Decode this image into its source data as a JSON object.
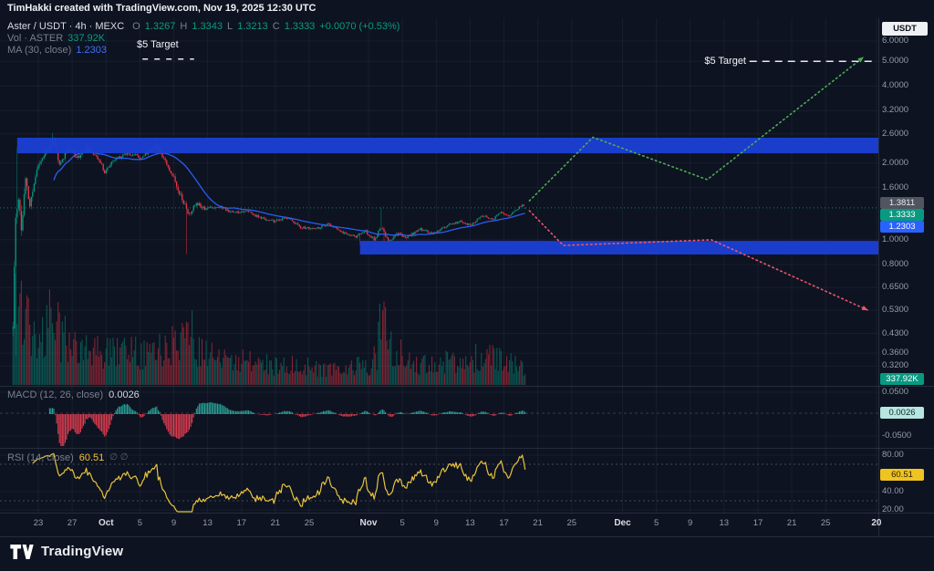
{
  "meta": {
    "attribution": "TimHakki created with TradingView.com, Nov 19, 2025 12:30 UTC",
    "currency_button": "USDT",
    "footer_brand": "TradingView"
  },
  "legend": {
    "title": "Aster / USDT · 4h · MEXC",
    "o_label": "O",
    "o": "1.3267",
    "h_label": "H",
    "h": "1.3343",
    "l_label": "L",
    "l": "1.3213",
    "c_label": "C",
    "c": "1.3333",
    "change": "+0.0070 (+0.53%)",
    "vol_label": "Vol · ASTER",
    "vol_value": "337.92K",
    "ma_label": "MA (30, close)",
    "ma_value": "1.2303"
  },
  "panes": {
    "macd_label": "MACD (12, 26, close)",
    "macd_value": "0.0026",
    "rsi_label": "RSI (14, close)",
    "rsi_value": "60.51",
    "rsi_extra": "∅ ∅"
  },
  "annotations": {
    "target_left": "$5 Target",
    "target_right": "$5 Target"
  },
  "axis_badges": {
    "bar_high": "1.3811",
    "last_price": "1.3333",
    "ma_value": "1.2303",
    "volume": "337.92K",
    "macd": "0.0026",
    "rsi": "60.51"
  },
  "chart_data": {
    "type": "candlestick",
    "symbol": "Aster / USDT",
    "exchange": "MEXC",
    "timeframe": "4h",
    "bars": 364,
    "seed": 11,
    "current_price": 1.3333,
    "last_bar": {
      "open": 1.3267,
      "high": 1.3343,
      "low": 1.3213,
      "close": 1.3333,
      "change": "+0.0070 (+0.53%)",
      "volume": "337.92K"
    },
    "colors": {
      "up": "#089981",
      "down": "#f23645",
      "ma": "#2962ff",
      "rsi": "#e9c33c",
      "band": "#1b3fd6",
      "bull": "#4caf50",
      "bear": "#ef566a",
      "target": "#e8eaee"
    },
    "y_ticks": [
      {
        "label": "6.0000",
        "price": 6.0
      },
      {
        "label": "5.0000",
        "price": 5.0
      },
      {
        "label": "4.0000",
        "price": 4.0
      },
      {
        "label": "3.2000",
        "price": 3.2
      },
      {
        "label": "2.6000",
        "price": 2.6
      },
      {
        "label": "2.0000",
        "price": 2.0
      },
      {
        "label": "1.6000",
        "price": 1.6
      },
      {
        "label": "1.0000",
        "price": 1.0
      },
      {
        "label": "0.8000",
        "price": 0.8
      },
      {
        "label": "0.6500",
        "price": 0.65
      },
      {
        "label": "0.5300",
        "price": 0.53
      },
      {
        "label": "0.4300",
        "price": 0.43
      },
      {
        "label": "0.3600",
        "price": 0.36
      },
      {
        "label": "0.3200",
        "price": 0.32
      }
    ],
    "macd_ticks": [
      {
        "label": "0.0500",
        "value": 0.05
      },
      {
        "label": "-0.0500",
        "value": -0.05
      }
    ],
    "rsi_ticks": [
      {
        "label": "80.00",
        "value": 80
      },
      {
        "label": "40.00",
        "value": 40
      },
      {
        "label": "20.00",
        "value": 20
      }
    ],
    "rsi_bands": [
      70,
      30
    ],
    "x_ticks": [
      {
        "label": "23",
        "day": 0
      },
      {
        "label": "27",
        "day": 4
      },
      {
        "label": "Oct",
        "day": 8,
        "major": true
      },
      {
        "label": "5",
        "day": 12
      },
      {
        "label": "9",
        "day": 16
      },
      {
        "label": "13",
        "day": 20
      },
      {
        "label": "17",
        "day": 24
      },
      {
        "label": "21",
        "day": 28
      },
      {
        "label": "25",
        "day": 32
      },
      {
        "label": "Nov",
        "day": 39,
        "major": true
      },
      {
        "label": "5",
        "day": 43
      },
      {
        "label": "9",
        "day": 47
      },
      {
        "label": "13",
        "day": 51
      },
      {
        "label": "17",
        "day": 55
      },
      {
        "label": "21",
        "day": 59
      },
      {
        "label": "25",
        "day": 63
      },
      {
        "label": "Dec",
        "day": 69,
        "major": true
      },
      {
        "label": "5",
        "day": 73
      },
      {
        "label": "9",
        "day": 77
      },
      {
        "label": "13",
        "day": 81
      },
      {
        "label": "17",
        "day": 85
      },
      {
        "label": "21",
        "day": 89
      },
      {
        "label": "25",
        "day": 93
      },
      {
        "label": "20",
        "day": 99,
        "major": true
      }
    ],
    "zones": [
      {
        "name": "supply-zone",
        "price_from": 2.18,
        "price_to": 2.51,
        "start_day": -2.5,
        "end_day": 99.3
      },
      {
        "name": "demand-zone",
        "price_from": 0.876,
        "price_to": 0.99,
        "start_day": 38,
        "end_day": 99.3
      }
    ],
    "projections": [
      {
        "name": "bullish-path",
        "color": "#4caf50",
        "points": [
          [
            58,
            1.42
          ],
          [
            65.5,
            2.52
          ],
          [
            79,
            1.72
          ],
          [
            97.5,
            5.2
          ]
        ],
        "arrow": true
      },
      {
        "name": "bearish-path",
        "color": "#ef566a",
        "points": [
          [
            58,
            1.3
          ],
          [
            62,
            0.95
          ],
          [
            79.5,
            1.0
          ],
          [
            98,
            0.53
          ]
        ],
        "arrow": true
      }
    ],
    "target_line": {
      "label": "$5 Target",
      "price": 5.0,
      "start_day": 84,
      "end_day": 98.8
    },
    "annotation_dash": {
      "label": "$5 Target",
      "price": 5.1,
      "start_day": 12.3,
      "end_day": 18.4
    },
    "price_keypoints": [
      [
        0,
        0.45
      ],
      [
        2,
        1.2
      ],
      [
        4,
        1.5
      ],
      [
        6,
        1.1
      ],
      [
        9,
        1.7
      ],
      [
        12,
        1.35
      ],
      [
        17,
        1.9
      ],
      [
        22,
        2.15
      ],
      [
        26,
        2.3
      ],
      [
        29,
        2.45
      ],
      [
        33,
        1.95
      ],
      [
        39,
        2.3
      ],
      [
        46,
        2.1
      ],
      [
        52,
        2.3
      ],
      [
        59,
        2.15
      ],
      [
        65,
        1.85
      ],
      [
        72,
        2.05
      ],
      [
        81,
        2.2
      ],
      [
        91,
        2.1
      ],
      [
        101,
        2.35
      ],
      [
        107,
        2.1
      ],
      [
        114,
        1.75
      ],
      [
        120,
        1.45
      ],
      [
        125,
        1.25
      ],
      [
        130,
        1.4
      ],
      [
        136,
        1.33
      ],
      [
        146,
        1.35
      ],
      [
        156,
        1.28
      ],
      [
        165,
        1.3
      ],
      [
        175,
        1.22
      ],
      [
        185,
        1.18
      ],
      [
        195,
        1.22
      ],
      [
        204,
        1.12
      ],
      [
        214,
        1.1
      ],
      [
        224,
        1.15
      ],
      [
        233,
        1.07
      ],
      [
        243,
        1.03
      ],
      [
        250,
        1.08
      ],
      [
        256,
        1.0
      ],
      [
        261,
        1.12
      ],
      [
        266,
        0.98
      ],
      [
        272,
        1.06
      ],
      [
        279,
        1.02
      ],
      [
        288,
        1.1
      ],
      [
        298,
        1.06
      ],
      [
        308,
        1.14
      ],
      [
        317,
        1.18
      ],
      [
        324,
        1.14
      ],
      [
        333,
        1.24
      ],
      [
        340,
        1.2
      ],
      [
        346,
        1.28
      ],
      [
        352,
        1.24
      ],
      [
        358,
        1.33
      ],
      [
        361,
        1.37
      ],
      [
        363,
        1.3333
      ]
    ],
    "volatility_keypoints": [
      [
        0,
        0.18
      ],
      [
        4,
        0.12
      ],
      [
        10,
        0.08
      ],
      [
        20,
        0.05
      ],
      [
        30,
        0.045
      ],
      [
        60,
        0.035
      ],
      [
        100,
        0.035
      ],
      [
        115,
        0.05
      ],
      [
        130,
        0.035
      ],
      [
        160,
        0.022
      ],
      [
        200,
        0.02
      ],
      [
        240,
        0.02
      ],
      [
        258,
        0.035
      ],
      [
        266,
        0.03
      ],
      [
        300,
        0.018
      ],
      [
        330,
        0.02
      ],
      [
        355,
        0.015
      ],
      [
        363,
        0.01
      ]
    ],
    "volume_keypoints": [
      [
        0,
        60
      ],
      [
        2,
        115
      ],
      [
        5,
        95
      ],
      [
        10,
        75
      ],
      [
        14,
        60
      ],
      [
        18,
        48
      ],
      [
        24,
        60
      ],
      [
        28,
        80
      ],
      [
        34,
        55
      ],
      [
        42,
        45
      ],
      [
        52,
        40
      ],
      [
        62,
        38
      ],
      [
        72,
        35
      ],
      [
        82,
        38
      ],
      [
        92,
        35
      ],
      [
        100,
        42
      ],
      [
        108,
        38
      ],
      [
        114,
        45
      ],
      [
        120,
        60
      ],
      [
        124,
        78
      ],
      [
        130,
        45
      ],
      [
        140,
        32
      ],
      [
        152,
        26
      ],
      [
        164,
        26
      ],
      [
        176,
        24
      ],
      [
        188,
        22
      ],
      [
        200,
        22
      ],
      [
        212,
        20
      ],
      [
        224,
        18
      ],
      [
        236,
        18
      ],
      [
        246,
        22
      ],
      [
        252,
        20
      ],
      [
        258,
        35
      ],
      [
        262,
        85
      ],
      [
        265,
        60
      ],
      [
        270,
        40
      ],
      [
        278,
        30
      ],
      [
        288,
        24
      ],
      [
        298,
        22
      ],
      [
        308,
        26
      ],
      [
        318,
        24
      ],
      [
        328,
        30
      ],
      [
        338,
        34
      ],
      [
        346,
        28
      ],
      [
        354,
        24
      ],
      [
        360,
        20
      ],
      [
        363,
        14
      ]
    ],
    "wick_events": [
      {
        "i": 2,
        "low": 0.35
      },
      {
        "i": 3,
        "high": 2.3
      },
      {
        "i": 28,
        "high": 2.62
      },
      {
        "i": 101,
        "high": 2.52
      },
      {
        "i": 123,
        "low": 0.88
      },
      {
        "i": 246,
        "low": 0.95
      },
      {
        "i": 257,
        "low": 0.94
      },
      {
        "i": 261,
        "high": 1.34
      },
      {
        "i": 263,
        "low": 0.93
      },
      {
        "i": 361,
        "high": 1.3811
      }
    ],
    "ma": {
      "period": 30
    },
    "macd": {
      "fast": 12,
      "slow": 26,
      "signal": 9
    },
    "rsi": {
      "period": 14
    }
  }
}
